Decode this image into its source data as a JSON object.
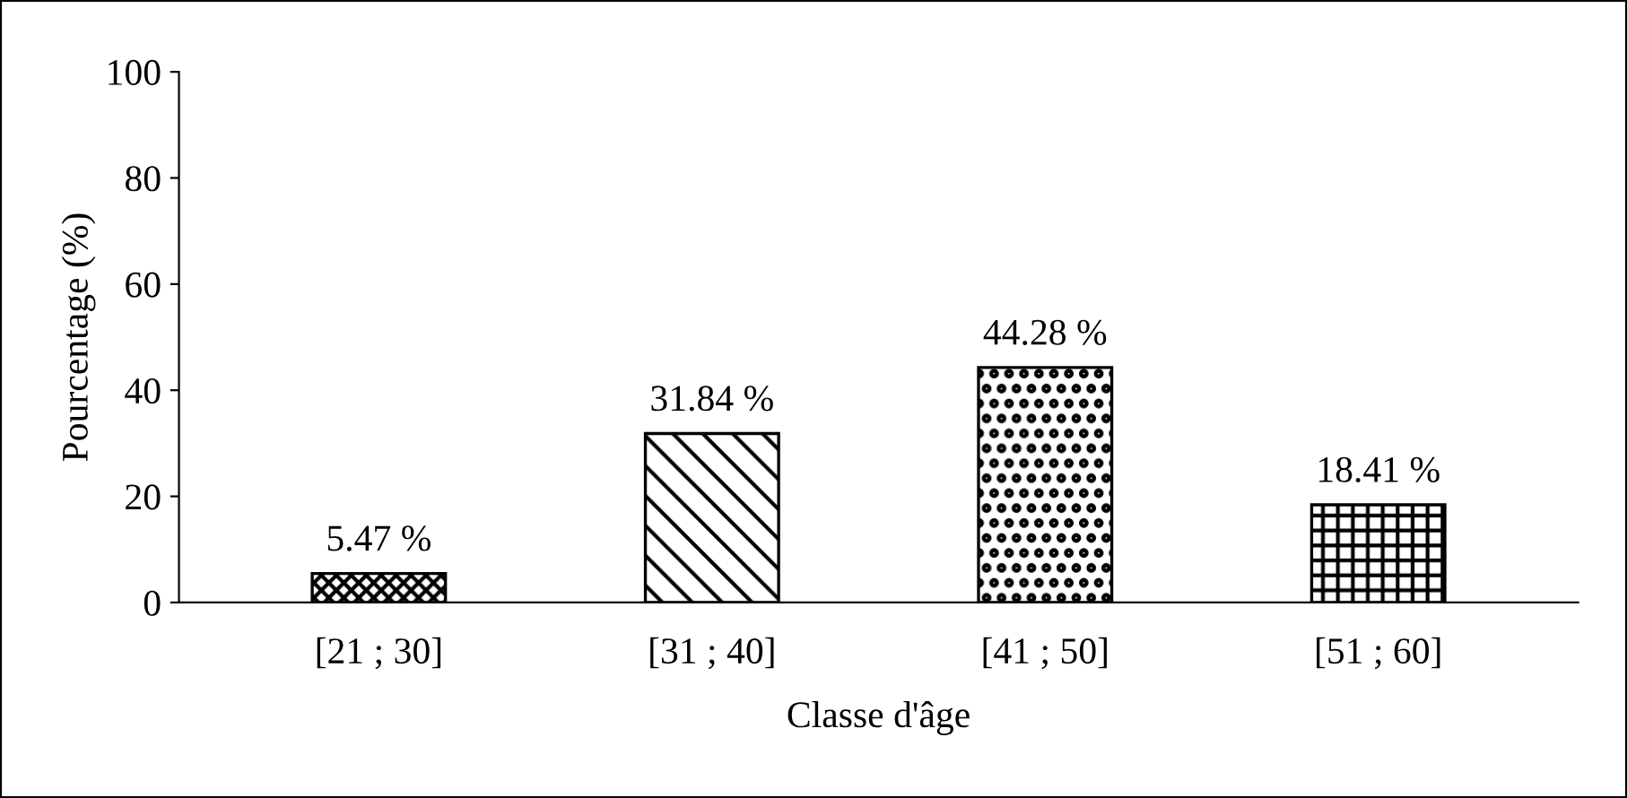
{
  "chart_data": {
    "type": "bar",
    "xlabel": "Classe d'âge",
    "ylabel": "Pourcentage (%)",
    "categories": [
      "[21 ; 30]",
      "[31 ; 40]",
      "[41 ; 50]",
      "[51 ; 60]"
    ],
    "values": [
      5.47,
      31.84,
      44.28,
      18.41
    ],
    "value_labels": [
      "5.47 %",
      "31.84 %",
      "44.28 %",
      "18.41 %"
    ],
    "color": "#000000",
    "ylim": [
      0,
      100
    ],
    "yticks": [
      0,
      20,
      40,
      60,
      80,
      100
    ],
    "grid": false,
    "legend": false
  }
}
